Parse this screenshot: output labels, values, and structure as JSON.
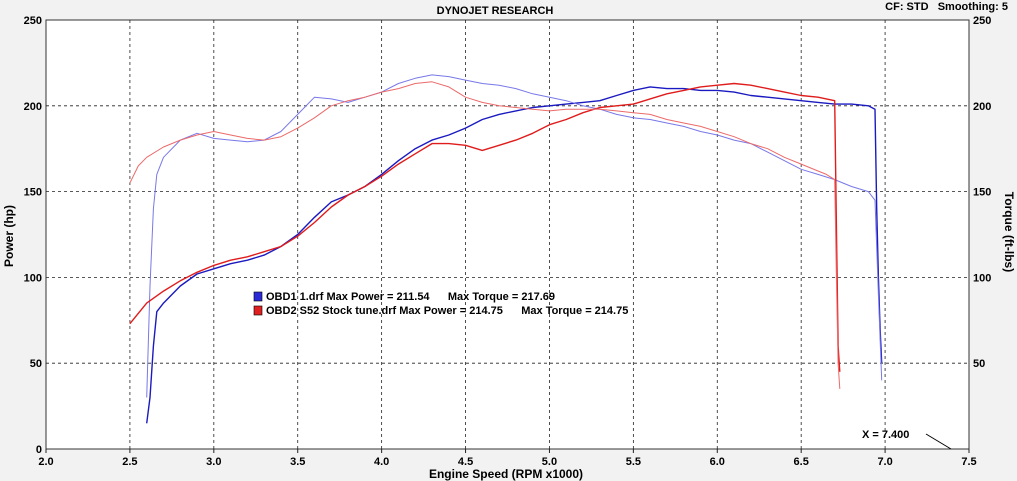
{
  "header": {
    "title": "DYNOJET RESEARCH",
    "settings": "CF: STD   Smoothing: 5"
  },
  "readout": "X = 7.400",
  "chart_data": {
    "type": "line",
    "xlabel": "Engine Speed (RPM x1000)",
    "ylabel_left": "Power (hp)",
    "ylabel_right": "Torque (ft-lbs)",
    "xlim": [
      2.0,
      7.5
    ],
    "ylim": [
      0,
      250
    ],
    "x_ticks": [
      "2.0",
      "2.5",
      "3.0",
      "3.5",
      "4.0",
      "4.5",
      "5.0",
      "5.5",
      "6.0",
      "6.5",
      "7.0",
      "7.5"
    ],
    "y_ticks": [
      "0",
      "50",
      "100",
      "150",
      "200",
      "250"
    ],
    "y_ticks_right": [
      "50",
      "100",
      "150",
      "200",
      "250"
    ],
    "grid": true,
    "legend_position": "center-left",
    "legend": [
      {
        "label": "OBD1 1.drf Max Power = 211.54      Max Torque = 217.69",
        "color": "#2b2bd6"
      },
      {
        "label": "OBD2 S52 Stock tune.drf Max Power = 214.75      Max Torque = 214.75",
        "color": "#e02020"
      }
    ],
    "series": [
      {
        "legend_index": 0,
        "measure": "power",
        "color": "#1a1ac0",
        "width": 1.4,
        "x": [
          2.6,
          2.62,
          2.64,
          2.66,
          2.7,
          2.8,
          2.9,
          3.0,
          3.1,
          3.2,
          3.3,
          3.4,
          3.5,
          3.6,
          3.7,
          3.8,
          3.9,
          4.0,
          4.1,
          4.2,
          4.3,
          4.4,
          4.5,
          4.6,
          4.7,
          4.8,
          4.9,
          5.0,
          5.1,
          5.2,
          5.3,
          5.4,
          5.5,
          5.6,
          5.7,
          5.8,
          5.9,
          6.0,
          6.1,
          6.2,
          6.3,
          6.4,
          6.5,
          6.6,
          6.7,
          6.8,
          6.9,
          6.94,
          6.95,
          6.96,
          6.97,
          6.98
        ],
        "y": [
          15,
          30,
          60,
          80,
          85,
          95,
          102,
          105,
          108,
          110,
          113,
          118,
          125,
          135,
          144,
          148,
          153,
          160,
          168,
          175,
          180,
          183,
          187,
          192,
          195,
          197,
          199,
          200,
          201,
          202,
          203,
          206,
          209,
          211,
          210,
          210,
          209,
          209,
          208,
          206,
          205,
          204,
          203,
          202,
          201,
          201,
          200,
          198,
          140,
          100,
          70,
          50
        ]
      },
      {
        "legend_index": 0,
        "measure": "torque",
        "color": "#7878e8",
        "width": 1,
        "x": [
          2.6,
          2.62,
          2.64,
          2.66,
          2.7,
          2.8,
          2.9,
          3.0,
          3.1,
          3.2,
          3.3,
          3.4,
          3.5,
          3.6,
          3.7,
          3.8,
          3.9,
          4.0,
          4.1,
          4.2,
          4.3,
          4.4,
          4.5,
          4.6,
          4.7,
          4.8,
          4.9,
          5.0,
          5.1,
          5.2,
          5.3,
          5.4,
          5.5,
          5.6,
          5.7,
          5.8,
          5.9,
          6.0,
          6.1,
          6.2,
          6.3,
          6.4,
          6.5,
          6.6,
          6.7,
          6.8,
          6.9,
          6.94,
          6.96,
          6.98
        ],
        "y": [
          30,
          95,
          140,
          160,
          170,
          180,
          184,
          181,
          180,
          179,
          180,
          185,
          195,
          205,
          204,
          202,
          205,
          208,
          213,
          216,
          218,
          217,
          215,
          213,
          212,
          210,
          207,
          205,
          203,
          200,
          198,
          195,
          193,
          192,
          190,
          188,
          185,
          183,
          180,
          178,
          173,
          168,
          163,
          160,
          157,
          153,
          150,
          145,
          90,
          40
        ]
      },
      {
        "legend_index": 1,
        "measure": "power",
        "color": "#e01c1c",
        "width": 1.4,
        "x": [
          2.5,
          2.6,
          2.7,
          2.8,
          2.9,
          3.0,
          3.1,
          3.2,
          3.3,
          3.4,
          3.5,
          3.6,
          3.7,
          3.8,
          3.9,
          4.0,
          4.1,
          4.2,
          4.3,
          4.4,
          4.5,
          4.6,
          4.7,
          4.8,
          4.9,
          5.0,
          5.1,
          5.2,
          5.3,
          5.4,
          5.5,
          5.6,
          5.7,
          5.8,
          5.9,
          6.0,
          6.1,
          6.2,
          6.3,
          6.4,
          6.5,
          6.6,
          6.65,
          6.7,
          6.71,
          6.72,
          6.73
        ],
        "y": [
          73,
          85,
          92,
          98,
          103,
          107,
          110,
          112,
          115,
          118,
          124,
          132,
          141,
          148,
          153,
          159,
          166,
          172,
          178,
          178,
          177,
          174,
          177,
          180,
          184,
          189,
          192,
          196,
          199,
          200,
          201,
          204,
          207,
          209,
          211,
          212,
          213,
          212,
          210,
          208,
          206,
          205,
          204,
          203,
          130,
          60,
          45
        ]
      },
      {
        "legend_index": 1,
        "measure": "torque",
        "color": "#ec6a6a",
        "width": 1,
        "x": [
          2.5,
          2.55,
          2.6,
          2.7,
          2.8,
          2.9,
          3.0,
          3.1,
          3.2,
          3.3,
          3.4,
          3.5,
          3.6,
          3.7,
          3.8,
          3.9,
          4.0,
          4.1,
          4.2,
          4.3,
          4.4,
          4.5,
          4.6,
          4.7,
          4.8,
          4.9,
          5.0,
          5.1,
          5.2,
          5.3,
          5.4,
          5.5,
          5.6,
          5.7,
          5.8,
          5.9,
          6.0,
          6.1,
          6.2,
          6.3,
          6.4,
          6.5,
          6.6,
          6.65,
          6.7,
          6.71,
          6.72,
          6.73
        ],
        "y": [
          155,
          165,
          170,
          176,
          180,
          183,
          185,
          183,
          181,
          180,
          182,
          187,
          193,
          200,
          203,
          205,
          208,
          210,
          213,
          214,
          211,
          205,
          202,
          200,
          199,
          198,
          197,
          198,
          198,
          198,
          197,
          196,
          195,
          192,
          190,
          188,
          185,
          182,
          178,
          175,
          170,
          166,
          162,
          160,
          157,
          100,
          50,
          35
        ]
      }
    ]
  }
}
